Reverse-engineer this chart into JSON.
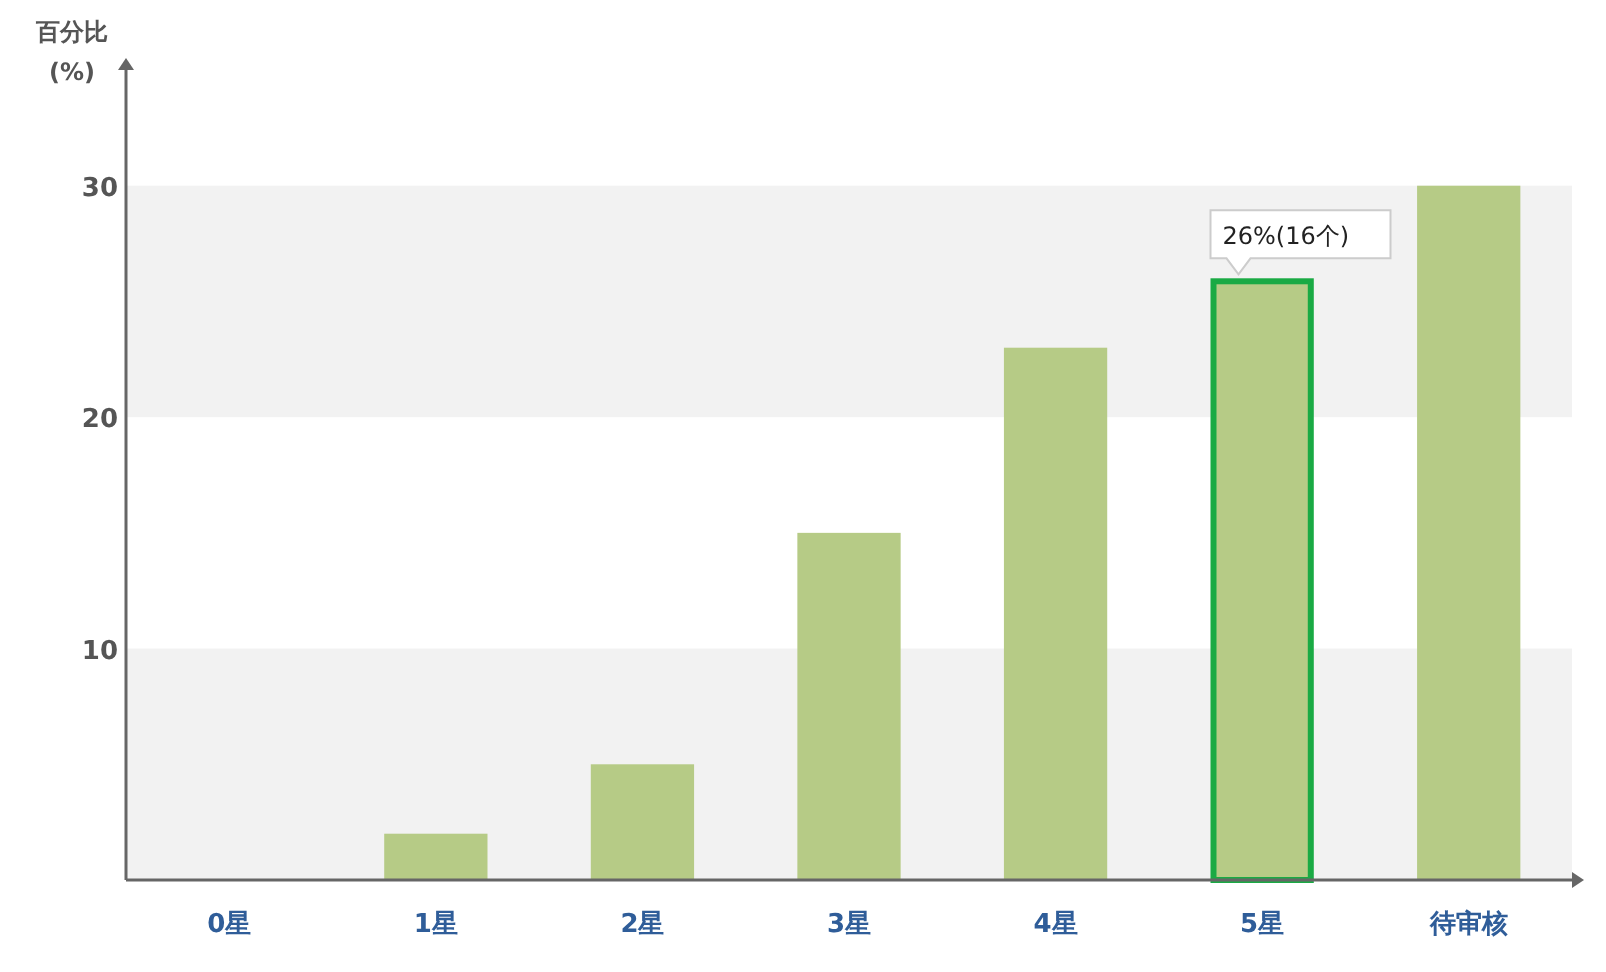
{
  "chart_data": {
    "type": "bar",
    "ylabel": "百分比\n(%)",
    "categories": [
      "0星",
      "1星",
      "2星",
      "3星",
      "4星",
      "5星",
      "待审核"
    ],
    "values": [
      0,
      2,
      5,
      15,
      23,
      26,
      30
    ],
    "color": "#b6cb86",
    "ylim": [
      0,
      35
    ],
    "yticks": [
      10,
      20,
      30
    ],
    "grid": false,
    "bands": [
      {
        "axis": "y",
        "from": 0,
        "to": 10,
        "color": "#f2f2f2"
      },
      {
        "axis": "y",
        "from": 20,
        "to": 30,
        "color": "#f2f2f2"
      }
    ],
    "annotations": [
      {
        "text": "26%(16个)",
        "x": "5星",
        "y": 26
      }
    ]
  }
}
